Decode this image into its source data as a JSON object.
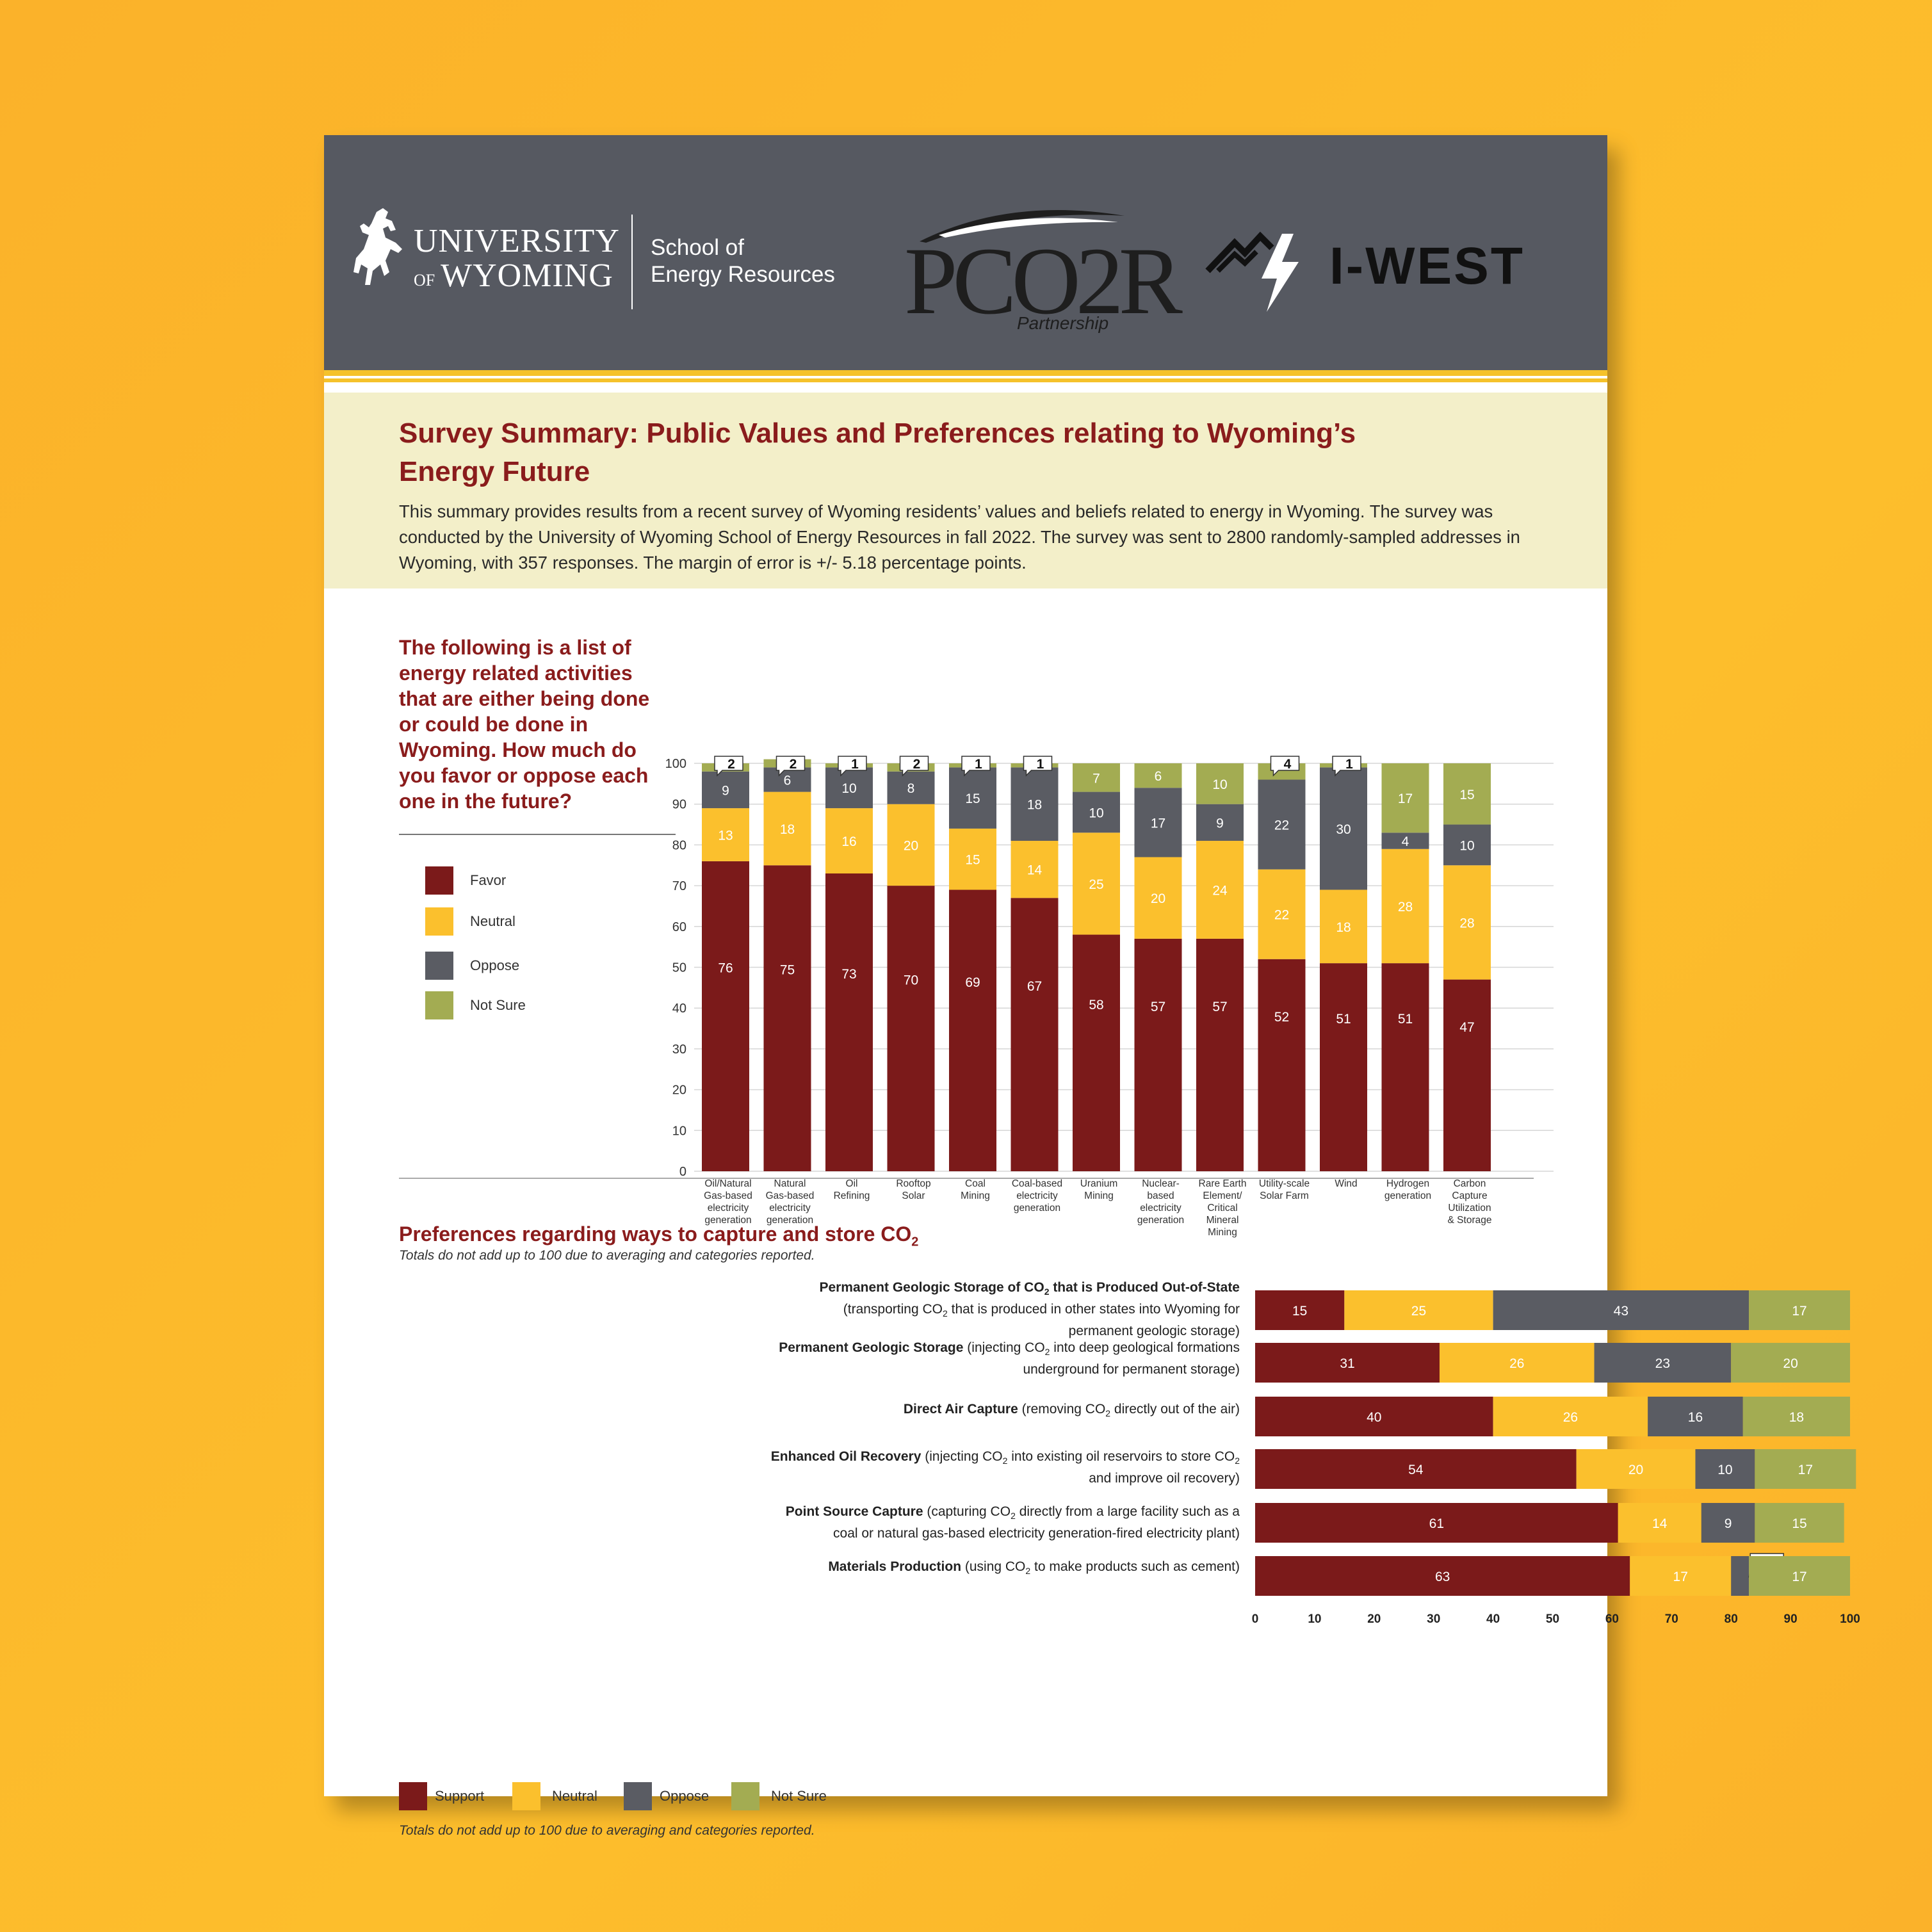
{
  "header": {
    "uw_line1": "UNIVERSITY",
    "uw_of": "OF",
    "uw_line2": "WYOMING",
    "school_line1": "School of",
    "school_line2": "Energy Resources",
    "pcor_logo": "PCO2R",
    "pcor_sub": "Partnership",
    "iwest_logo": "I-WEST"
  },
  "intro": {
    "title": "Survey Summary: Public Values and Preferences relating to Wyoming’s Energy Future",
    "body": "This summary provides results from a recent survey of Wyoming residents’ values and beliefs related to energy in Wyoming. The survey was conducted by the University of Wyoming School of Energy Resources in fall 2022. The survey was sent to 2800 randomly-sampled addresses in Wyoming, with 357 responses. The margin of error is +/- 5.18 percentage points."
  },
  "section1": {
    "question": "The following is a list of energy related activities that are either being done or could be done in Wyoming. How much do you favor or oppose each one in the future?",
    "legend": [
      "Favor",
      "Neutral",
      "Oppose",
      "Not Sure"
    ],
    "note": "Totals do not add up to 100 due to averaging and categories reported."
  },
  "section2": {
    "title": "Preferences regarding ways to capture and store CO",
    "title_sub": "2",
    "legend": [
      "Support",
      "Neutral",
      "Oppose",
      "Not Sure"
    ],
    "note": "Totals do not add up to 100 due to averaging and categories reported.",
    "rows": [
      {
        "bold": "Permanent Geologic Storage of CO",
        "bold_sub": "2",
        "bold_tail": " that is Produced Out-of-State",
        "line2a": "(transporting CO",
        "line2b": " that is produced in other states into Wyoming for",
        "line3": "permanent geologic storage)"
      },
      {
        "bold": "Permanent Geologic Storage",
        "rest_a": " (injecting CO",
        "rest_b": " into deep geological formations",
        "line2": "underground for permanent storage)"
      },
      {
        "bold": "Direct Air Capture",
        "rest_a": " (removing CO",
        "rest_b": " directly out of the air)"
      },
      {
        "bold": "Enhanced Oil Recovery",
        "rest_a": " (injecting CO",
        "rest_b": " into existing oil reservoirs to store CO",
        "line2": "and improve oil recovery)"
      },
      {
        "bold": "Point Source Capture",
        "rest_a": " (capturing CO",
        "rest_b": " directly from a large facility such as a",
        "line2": "coal or natural gas-based electricity generation-fired electricity plant)"
      },
      {
        "bold": "Materials Production",
        "rest_a": " (using CO",
        "rest_b": " to make products such as cement)"
      }
    ]
  },
  "colors": {
    "favor": "#7B1A1A",
    "neutral": "#FBC02D",
    "oppose": "#5A5C63",
    "notsure": "#A3AC52"
  },
  "chart_data": [
    {
      "type": "bar",
      "stacked": true,
      "orientation": "vertical",
      "categories": [
        "Oil/Natural Gas-based electricity generation",
        "Natural Gas-based electricity generation",
        "Oil Refining",
        "Rooftop Solar",
        "Coal Mining",
        "Coal-based electricity generation",
        "Uranium Mining",
        "Nuclear-based electricity generation",
        "Rare Earth Element/ Critical Mineral Mining",
        "Utility-scale Solar Farm",
        "Wind",
        "Hydrogen generation",
        "Carbon Capture Utilization & Storage"
      ],
      "category_lines": [
        [
          "Oil/Natural",
          "Gas-based",
          "electricity",
          "generation"
        ],
        [
          "Natural",
          "Gas-based",
          "electricity",
          "generation"
        ],
        [
          "Oil",
          "Refining"
        ],
        [
          "Rooftop",
          "Solar"
        ],
        [
          "Coal",
          "Mining"
        ],
        [
          "Coal-based",
          "electricity",
          "generation"
        ],
        [
          "Uranium",
          "Mining"
        ],
        [
          "Nuclear-",
          "based",
          "electricity",
          "generation"
        ],
        [
          "Rare Earth",
          "Element/",
          "Critical",
          "Mineral",
          "Mining"
        ],
        [
          "Utility-scale",
          "Solar Farm"
        ],
        [
          "Wind"
        ],
        [
          "Hydrogen",
          "generation"
        ],
        [
          "Carbon",
          "Capture",
          "Utilization",
          "& Storage"
        ]
      ],
      "series": [
        {
          "name": "Favor",
          "values": [
            76,
            75,
            73,
            70,
            69,
            67,
            58,
            57,
            57,
            52,
            51,
            51,
            47
          ]
        },
        {
          "name": "Neutral",
          "values": [
            13,
            18,
            16,
            20,
            15,
            14,
            25,
            20,
            24,
            22,
            18,
            28,
            28
          ]
        },
        {
          "name": "Oppose",
          "values": [
            9,
            6,
            10,
            8,
            15,
            18,
            10,
            17,
            9,
            22,
            30,
            4,
            10
          ]
        },
        {
          "name": "Not Sure",
          "values": [
            2,
            2,
            1,
            2,
            1,
            1,
            7,
            6,
            10,
            4,
            1,
            17,
            15
          ]
        }
      ],
      "callouts": [
        true,
        true,
        true,
        true,
        true,
        true,
        false,
        false,
        false,
        true,
        true,
        false,
        false
      ],
      "ylim": [
        0,
        100
      ],
      "yticks": [
        0,
        10,
        20,
        30,
        40,
        50,
        60,
        70,
        80,
        90,
        100
      ],
      "grid": true,
      "legend_position": "left"
    },
    {
      "type": "bar",
      "stacked": true,
      "orientation": "horizontal",
      "categories": [
        "Permanent Geologic Storage of CO2 that is Produced Out-of-State",
        "Permanent Geologic Storage",
        "Direct Air Capture",
        "Enhanced Oil Recovery",
        "Point Source Capture",
        "Materials Production"
      ],
      "series": [
        {
          "name": "Support",
          "values": [
            15,
            31,
            40,
            54,
            61,
            63
          ]
        },
        {
          "name": "Neutral",
          "values": [
            25,
            26,
            26,
            20,
            14,
            17
          ]
        },
        {
          "name": "Oppose",
          "values": [
            43,
            23,
            16,
            10,
            9,
            3
          ]
        },
        {
          "name": "Not Sure",
          "values": [
            17,
            20,
            18,
            17,
            15,
            17
          ]
        }
      ],
      "callouts": [
        false,
        false,
        false,
        false,
        false,
        true
      ],
      "xlim": [
        0,
        100
      ],
      "xticks": [
        0,
        10,
        20,
        30,
        40,
        50,
        60,
        70,
        80,
        90,
        100
      ],
      "legend_position": "bottom"
    }
  ]
}
